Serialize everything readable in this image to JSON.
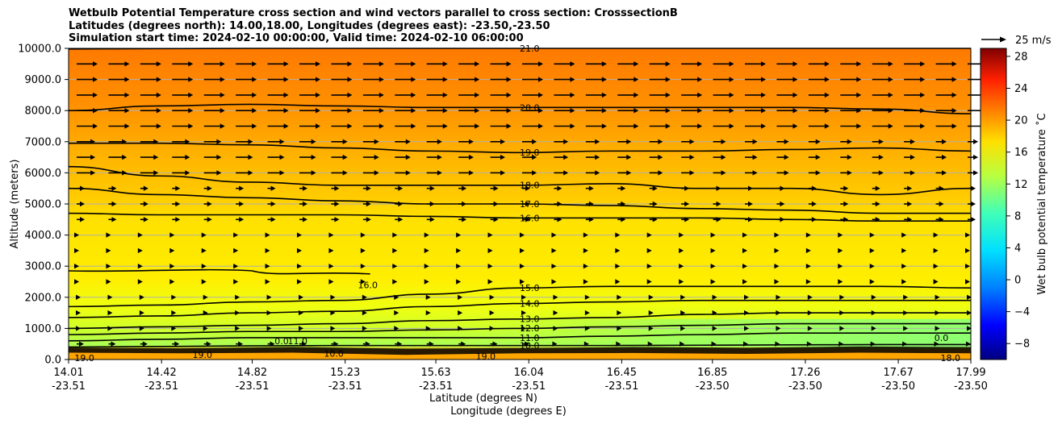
{
  "title": {
    "line1": "Wetbulb Potential Temperature cross section and wind vectors parallel to cross section: CrosssectionB",
    "line2": "Latitudes (degrees north): 14.00,18.00, Longitudes (degrees east): -23.50,-23.50",
    "line3": "Simulation start time: 2024-02-10 00:00:00, Valid time: 2024-02-10 06:00:00"
  },
  "chart_data": {
    "type": "heatmap",
    "ylabel": "Altitude (meters)",
    "xlabel_lat": "Latitude (degrees N)",
    "xlabel_lon": "Longitude (degrees E)",
    "ylim": [
      0,
      10000
    ],
    "yticks": [
      "0.0",
      "1000.0",
      "2000.0",
      "3000.0",
      "4000.0",
      "5000.0",
      "6000.0",
      "7000.0",
      "8000.0",
      "9000.0",
      "10000.0"
    ],
    "xticks": [
      {
        "lat": "14.01",
        "lon": "-23.51"
      },
      {
        "lat": "14.42",
        "lon": "-23.51"
      },
      {
        "lat": "14.82",
        "lon": "-23.51"
      },
      {
        "lat": "15.23",
        "lon": "-23.51"
      },
      {
        "lat": "15.63",
        "lon": "-23.51"
      },
      {
        "lat": "16.04",
        "lon": "-23.51"
      },
      {
        "lat": "16.45",
        "lon": "-23.51"
      },
      {
        "lat": "16.85",
        "lon": "-23.50"
      },
      {
        "lat": "17.26",
        "lon": "-23.50"
      },
      {
        "lat": "17.67",
        "lon": "-23.50"
      },
      {
        "lat": "17.99",
        "lon": "-23.50"
      }
    ],
    "grid": "horizontal",
    "colorbar": {
      "label": "Wet bulb potential temperature ˚C",
      "range": [
        -10,
        29
      ],
      "ticks": [
        "−8",
        "−4",
        "0",
        "4",
        "8",
        "12",
        "16",
        "20",
        "24",
        "28"
      ],
      "colormap": "jet"
    },
    "quiver_key": {
      "label": "25 m/s"
    },
    "contours": [
      {
        "level": "21.0",
        "z": [
          9980,
          9990,
          10000,
          10000,
          10000,
          10000,
          10000,
          10000,
          10000,
          10000,
          10000
        ],
        "label_x": 16.04
      },
      {
        "level": "20.0",
        "z": [
          8000,
          8150,
          8200,
          8150,
          8100,
          8100,
          8100,
          8100,
          8100,
          8050,
          7900
        ],
        "label_x": 16.04
      },
      {
        "level": "19.0",
        "z": [
          6950,
          6950,
          6900,
          6800,
          6700,
          6650,
          6700,
          6700,
          6750,
          6800,
          6700
        ],
        "label_x": 16.04
      },
      {
        "level": "18.0",
        "z": [
          6200,
          5900,
          5700,
          5600,
          5600,
          5600,
          5650,
          5500,
          5500,
          5300,
          5500
        ],
        "label_x": 16.04
      },
      {
        "level": "17.0",
        "z": [
          5500,
          5300,
          5200,
          5100,
          5000,
          5000,
          4950,
          4850,
          4800,
          4700,
          4700
        ],
        "label_x": 16.04
      },
      {
        "level": "16.0",
        "z": [
          4700,
          4650,
          4650,
          4650,
          4600,
          4550,
          4550,
          4550,
          4500,
          4450,
          4450
        ],
        "label_x": 16.04
      },
      {
        "level": "15.0",
        "z": [
          1700,
          1750,
          1850,
          1900,
          2100,
          2300,
          2350,
          2350,
          2350,
          2350,
          2300
        ],
        "label_x": 16.04
      },
      {
        "level": "14.0",
        "z": [
          1350,
          1400,
          1500,
          1550,
          1700,
          1800,
          1850,
          1900,
          1900,
          1900,
          1900
        ],
        "label_x": 16.04
      },
      {
        "level": "13.0",
        "z": [
          1000,
          1050,
          1100,
          1150,
          1250,
          1300,
          1350,
          1450,
          1500,
          1500,
          1500
        ],
        "label_x": 16.04
      },
      {
        "level": "12.0",
        "z": [
          800,
          850,
          900,
          900,
          950,
          1000,
          1050,
          1100,
          1150,
          1150,
          1150
        ],
        "label_x": 16.04
      },
      {
        "level": "11.0",
        "z": [
          600,
          650,
          700,
          700,
          700,
          700,
          750,
          800,
          850,
          850,
          850
        ],
        "label_x": 16.04
      },
      {
        "level": "10.0",
        "z": [
          400,
          420,
          440,
          450,
          450,
          450,
          450,
          460,
          470,
          480,
          480
        ],
        "label_x": 16.04
      }
    ],
    "other_contour_labels": [
      {
        "text": "16.0",
        "x": 15.33,
        "z": 2400
      },
      {
        "text": "19.0",
        "x": 14.08,
        "z": 50
      },
      {
        "text": "19.0",
        "x": 14.6,
        "z": 150
      },
      {
        "text": "0.0",
        "x": 14.95,
        "z": 600
      },
      {
        "text": "11.0",
        "x": 15.02,
        "z": 600
      },
      {
        "text": "10.0",
        "x": 15.18,
        "z": 200
      },
      {
        "text": "19.0",
        "x": 15.85,
        "z": 100
      },
      {
        "text": "0.0",
        "x": 17.86,
        "z": 700
      },
      {
        "text": "18.0",
        "x": 17.9,
        "z": 50
      }
    ]
  }
}
